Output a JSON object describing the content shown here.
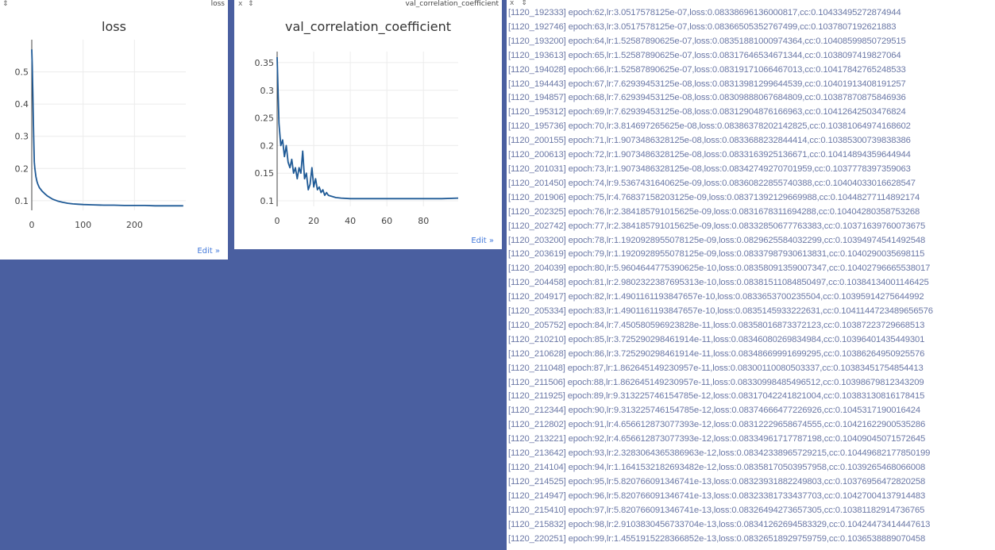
{
  "panes": {
    "loss": {
      "title": "loss",
      "bar_title": "loss",
      "edit_label": "Edit »",
      "controls": [
        "x",
        "⇕"
      ]
    },
    "val_cc": {
      "title": "val_correlation_coefficient",
      "bar_title": "val_correlation_coefficient",
      "edit_label": "Edit »",
      "controls": [
        "x",
        "⇕"
      ]
    }
  },
  "log_pane": {
    "controls": [
      "x",
      "⇕"
    ]
  },
  "chart_data": [
    {
      "type": "line",
      "title": "loss",
      "xlim": [
        0,
        300
      ],
      "ylim": [
        0.07,
        0.6
      ],
      "x_ticks": [
        0,
        100,
        200
      ],
      "y_ticks": [
        0.1,
        0.2,
        0.3,
        0.4,
        0.5
      ],
      "grid": true,
      "color": "#1f5a96",
      "series": [
        {
          "x": [
            0,
            1,
            2,
            3,
            4,
            5,
            6,
            8,
            10,
            12,
            15,
            20,
            25,
            30,
            40,
            50,
            60,
            70,
            80,
            90,
            100,
            120,
            140,
            160,
            180,
            200,
            220,
            240,
            260,
            280,
            295
          ],
          "values": [
            0.57,
            0.52,
            0.44,
            0.36,
            0.28,
            0.22,
            0.2,
            0.175,
            0.16,
            0.15,
            0.14,
            0.13,
            0.122,
            0.115,
            0.105,
            0.099,
            0.095,
            0.092,
            0.09,
            0.089,
            0.088,
            0.087,
            0.086,
            0.086,
            0.085,
            0.085,
            0.085,
            0.084,
            0.084,
            0.084,
            0.084
          ]
        }
      ]
    },
    {
      "type": "line",
      "title": "val_correlation_coefficient",
      "xlim": [
        0,
        99
      ],
      "ylim": [
        0.09,
        0.37
      ],
      "x_ticks": [
        0,
        20,
        40,
        60,
        80
      ],
      "y_ticks": [
        0.1,
        0.15,
        0.2,
        0.25,
        0.3,
        0.35
      ],
      "grid": true,
      "color": "#1f5a96",
      "series": [
        {
          "x": [
            0,
            1,
            2,
            3,
            4,
            5,
            6,
            7,
            8,
            9,
            10,
            11,
            12,
            13,
            14,
            15,
            16,
            17,
            18,
            19,
            20,
            21,
            22,
            23,
            24,
            25,
            26,
            27,
            28,
            30,
            32,
            35,
            40,
            50,
            60,
            70,
            80,
            90,
            99
          ],
          "values": [
            0.36,
            0.24,
            0.2,
            0.21,
            0.18,
            0.2,
            0.17,
            0.16,
            0.175,
            0.15,
            0.16,
            0.14,
            0.16,
            0.15,
            0.19,
            0.14,
            0.15,
            0.12,
            0.13,
            0.16,
            0.125,
            0.14,
            0.12,
            0.125,
            0.115,
            0.12,
            0.11,
            0.115,
            0.11,
            0.108,
            0.106,
            0.105,
            0.104,
            0.104,
            0.104,
            0.104,
            0.104,
            0.104,
            0.105
          ]
        }
      ]
    }
  ],
  "log_lines": [
    "[1120_192333] epoch:62,lr:3.0517578125e-07,loss:0.08338696136000817,cc:0.10433495272874944",
    "[1120_192746] epoch:63,lr:3.0517578125e-07,loss:0.08366505352767499,cc:0.1037807192621883",
    "[1120_193200] epoch:64,lr:1.52587890625e-07,loss:0.08351881000974364,cc:0.10408599850729515",
    "[1120_193613] epoch:65,lr:1.52587890625e-07,loss:0.08317646534671344,cc:0.1038097419827064",
    "[1120_194028] epoch:66,lr:1.52587890625e-07,loss:0.08319171066467013,cc:0.10417842765248533",
    "[1120_194443] epoch:67,lr:7.62939453125e-08,loss:0.08313981299644539,cc:0.10401913408191257",
    "[1120_194857] epoch:68,lr:7.62939453125e-08,loss:0.08309888067684809,cc:0.10387870875846936",
    "[1120_195312] epoch:69,lr:7.62939453125e-08,loss:0.08312904876166963,cc:0.10412642503476824",
    "[1120_195736] epoch:70,lr:3.814697265625e-08,loss:0.08386378202142825,cc:0.10381064974168602",
    "[1120_200155] epoch:71,lr:1.9073486328125e-08,loss:0.0833688232844414,cc:0.10385300739838386",
    "[1120_200613] epoch:72,lr:1.9073486328125e-08,loss:0.0833163925136671,cc:0.10414894359644944",
    "[1120_201031] epoch:73,lr:1.9073486328125e-08,loss:0.08342749270701959,cc:0.1037778397359063",
    "[1120_201450] epoch:74,lr:9.5367431640625e-09,loss:0.08360822855740388,cc:0.10404033016628547",
    "[1120_201906] epoch:75,lr:4.76837158203125e-09,loss:0.08371392129669988,cc:0.10448277114892174",
    "[1120_202325] epoch:76,lr:2.384185791015625e-09,loss:0.0831678311694288,cc:0.10404280358753268",
    "[1120_202742] epoch:77,lr:2.384185791015625e-09,loss:0.08332850677763383,cc:0.10371639760073675",
    "[1120_203200] epoch:78,lr:1.1920928955078125e-09,loss:0.0829625584032299,cc:0.10394974541492548",
    "[1120_203619] epoch:79,lr:1.1920928955078125e-09,loss:0.08337987930613831,cc:0.1040290035698115",
    "[1120_204039] epoch:80,lr:5.9604644775390625e-10,loss:0.08358091359007347,cc:0.10402796665538017",
    "[1120_204458] epoch:81,lr:2.9802322387695313e-10,loss:0.08381511084850497,cc:0.10384134001146425",
    "[1120_204917] epoch:82,lr:1.4901161193847657e-10,loss:0.0833653700235504,cc:0.10395914275644992",
    "[1120_205334] epoch:83,lr:1.4901161193847657e-10,loss:0.0835145933222631,cc:0.1041144723489656576",
    "[1120_205752] epoch:84,lr:7.450580596923828e-11,loss:0.08358016873372123,cc:0.10387223729668513",
    "[1120_210210] epoch:85,lr:3.725290298461914e-11,loss:0.08346080269834984,cc:0.10396401435449301",
    "[1120_210628] epoch:86,lr:3.725290298461914e-11,loss:0.08348669991699295,cc:0.10386264950925576",
    "[1120_211048] epoch:87,lr:1.862645149230957e-11,loss:0.08300110080503337,cc:0.10383451754854413",
    "[1120_211506] epoch:88,lr:1.862645149230957e-11,loss:0.08330998485496512,cc:0.10398679812343209",
    "[1120_211925] epoch:89,lr:9.313225746154785e-12,loss:0.08317042241821004,cc:0.10383130816178415",
    "[1120_212344] epoch:90,lr:9.313225746154785e-12,loss:0.08374666477226926,cc:0.1045317190016424",
    "[1120_212802] epoch:91,lr:4.656612873077393e-12,loss:0.08312229658674555,cc:0.10421622900535286",
    "[1120_213221] epoch:92,lr:4.656612873077393e-12,loss:0.08334961717787198,cc:0.10409045071572645",
    "[1120_213642] epoch:93,lr:2.3283064365386963e-12,loss:0.08342338965729215,cc:0.10449682177850199",
    "[1120_214104] epoch:94,lr:1.1641532182693482e-12,loss:0.08358170503957958,cc:0.1039265468066008",
    "[1120_214525] epoch:95,lr:5.820766091346741e-13,loss:0.08323931882249803,cc:0.10376956472820258",
    "[1120_214947] epoch:96,lr:5.820766091346741e-13,loss:0.08323381733437703,cc:0.10427004137914483",
    "[1120_215410] epoch:97,lr:5.820766091346741e-13,loss:0.08326494273657305,cc:0.10381182914736765",
    "[1120_215832] epoch:98,lr:2.9103830456733704e-13,loss:0.08341262694583329,cc:0.10424473414447613",
    "[1120_220251] epoch:99,lr:1.4551915228366852e-13,loss:0.08326518929759759,cc:0.1036538889070458"
  ]
}
